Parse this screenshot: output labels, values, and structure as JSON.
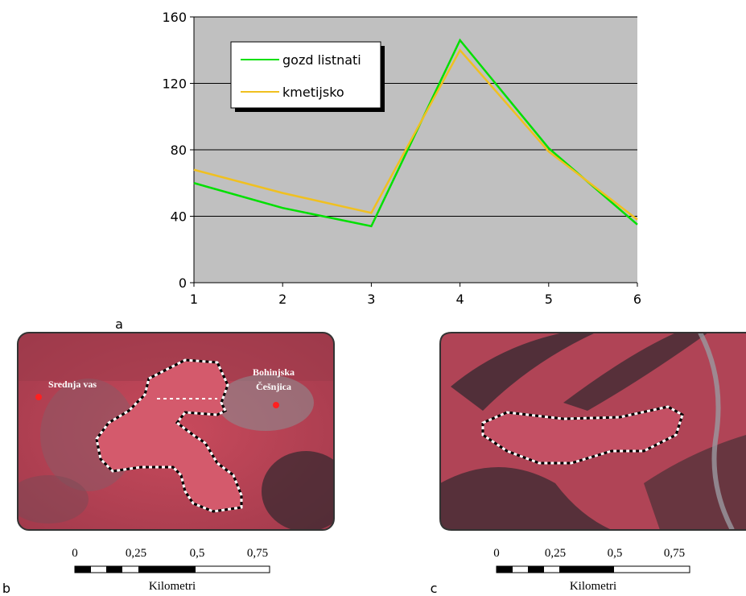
{
  "chart_data": {
    "type": "line",
    "x": [
      1,
      2,
      3,
      4,
      5,
      6
    ],
    "series": [
      {
        "name": "gozd listnati",
        "color": "#00e000",
        "values": [
          60,
          45,
          34,
          146,
          81,
          35
        ]
      },
      {
        "name": "kmetijsko",
        "color": "#f0c020",
        "values": [
          68,
          54,
          42,
          140,
          79,
          38
        ]
      }
    ],
    "xlim": [
      1,
      6
    ],
    "xticks": [
      1,
      2,
      3,
      4,
      5,
      6
    ],
    "ylim": [
      0,
      160
    ],
    "yticks": [
      0,
      40,
      80,
      120,
      160
    ],
    "grid": true,
    "legend": "top-left"
  },
  "panel_labels": [
    "a",
    "b",
    "c"
  ],
  "map_b": {
    "places": [
      "Srednja vas",
      "Bohinjska",
      "Češnjica"
    ],
    "scale": {
      "ticks": [
        "0",
        "0,25",
        "0,5",
        "0,75"
      ],
      "unit": "Kilometri"
    }
  },
  "map_c": {
    "scale": {
      "ticks": [
        "0",
        "0,25",
        "0,5",
        "0,75"
      ],
      "unit": "Kilometri"
    }
  }
}
